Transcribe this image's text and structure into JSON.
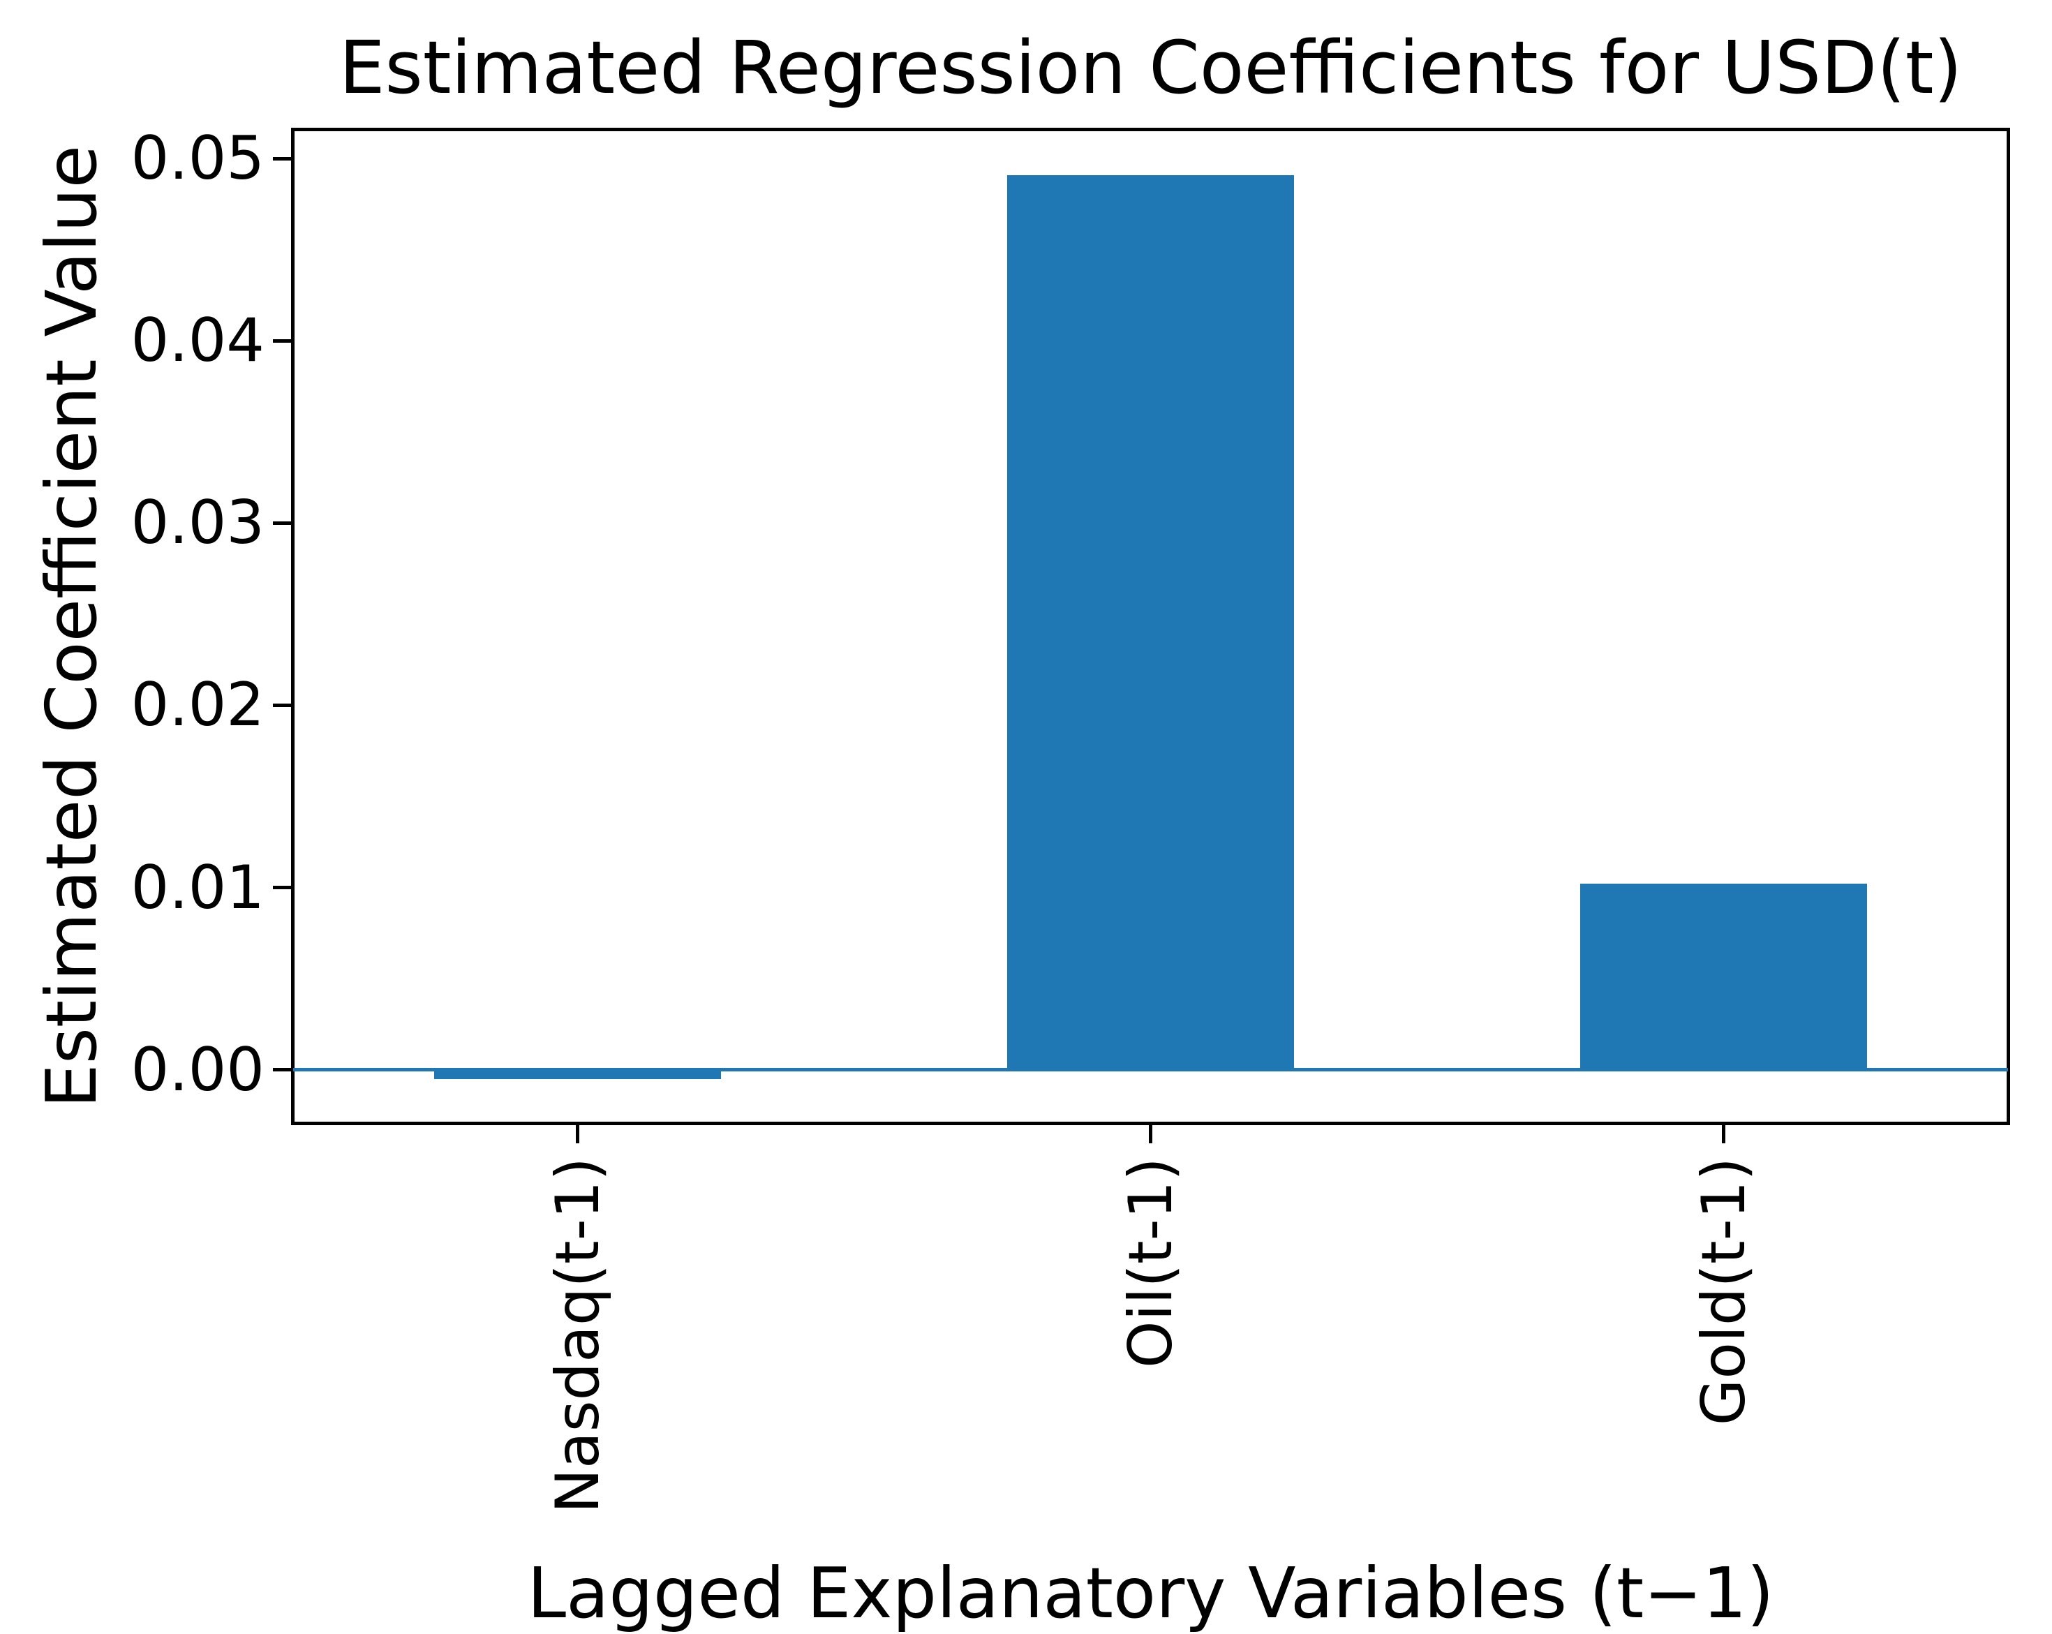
{
  "chart_data": {
    "type": "bar",
    "title": "Estimated Regression Coefficients for USD(t)",
    "xlabel": "Lagged Explanatory Variables (t−1)",
    "ylabel": "Estimated Coefficient Value",
    "categories": [
      "Nasdaq(t-1)",
      "Oil(t-1)",
      "Gold(t-1)"
    ],
    "values": [
      -0.0005,
      0.0491,
      0.0102
    ],
    "yticks": [
      0.0,
      0.01,
      0.02,
      0.03,
      0.04,
      0.05
    ],
    "ytick_labels": [
      "0.00",
      "0.01",
      "0.02",
      "0.03",
      "0.04",
      "0.05"
    ],
    "ylim": [
      -0.00304,
      0.05169
    ],
    "xlim": [
      -0.5,
      2.5
    ],
    "bar_width": 0.5,
    "bar_color": "#1f77b4",
    "zero_line": {
      "y": 0,
      "color": "#1f77b4"
    },
    "axis_color": "#000000",
    "grid": false,
    "legend": null,
    "x_tick_label_rotation_deg": 90
  }
}
